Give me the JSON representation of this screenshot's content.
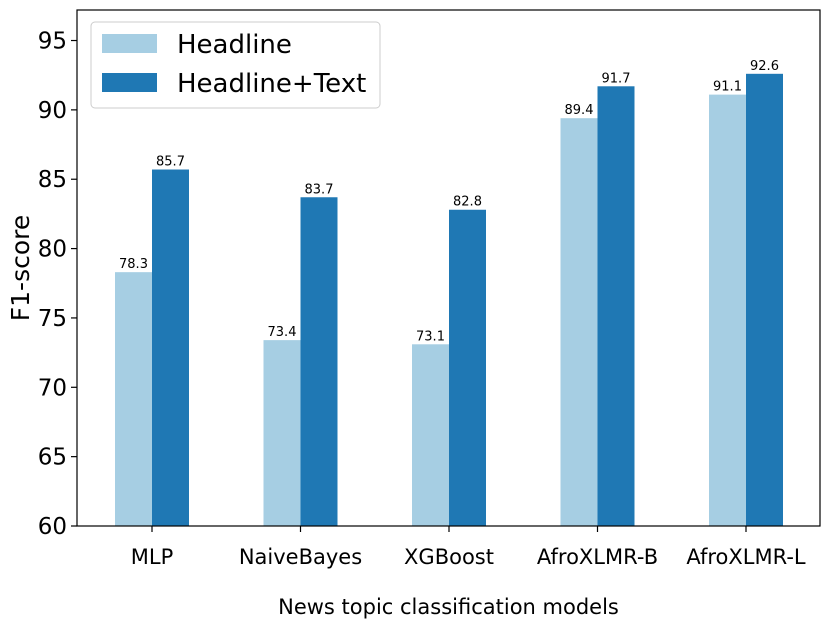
{
  "chart_data": {
    "type": "bar",
    "xlabel": "News topic classification models",
    "ylabel": "F1-score",
    "ylim": [
      60,
      97.2
    ],
    "yticks": [
      60,
      65,
      70,
      75,
      80,
      85,
      90,
      95
    ],
    "categories": [
      "MLP",
      "NaiveBayes",
      "XGBoost",
      "AfroXLMR-B",
      "AfroXLMR-L"
    ],
    "series": [
      {
        "name": "Headline",
        "values": [
          78.3,
          73.4,
          73.1,
          89.4,
          91.1
        ],
        "color": "#a6cee3"
      },
      {
        "name": "Headline+Text",
        "values": [
          85.7,
          83.7,
          82.8,
          91.7,
          92.6
        ],
        "color": "#1f78b4"
      }
    ],
    "legend_position": "top-left",
    "grid": false
  }
}
